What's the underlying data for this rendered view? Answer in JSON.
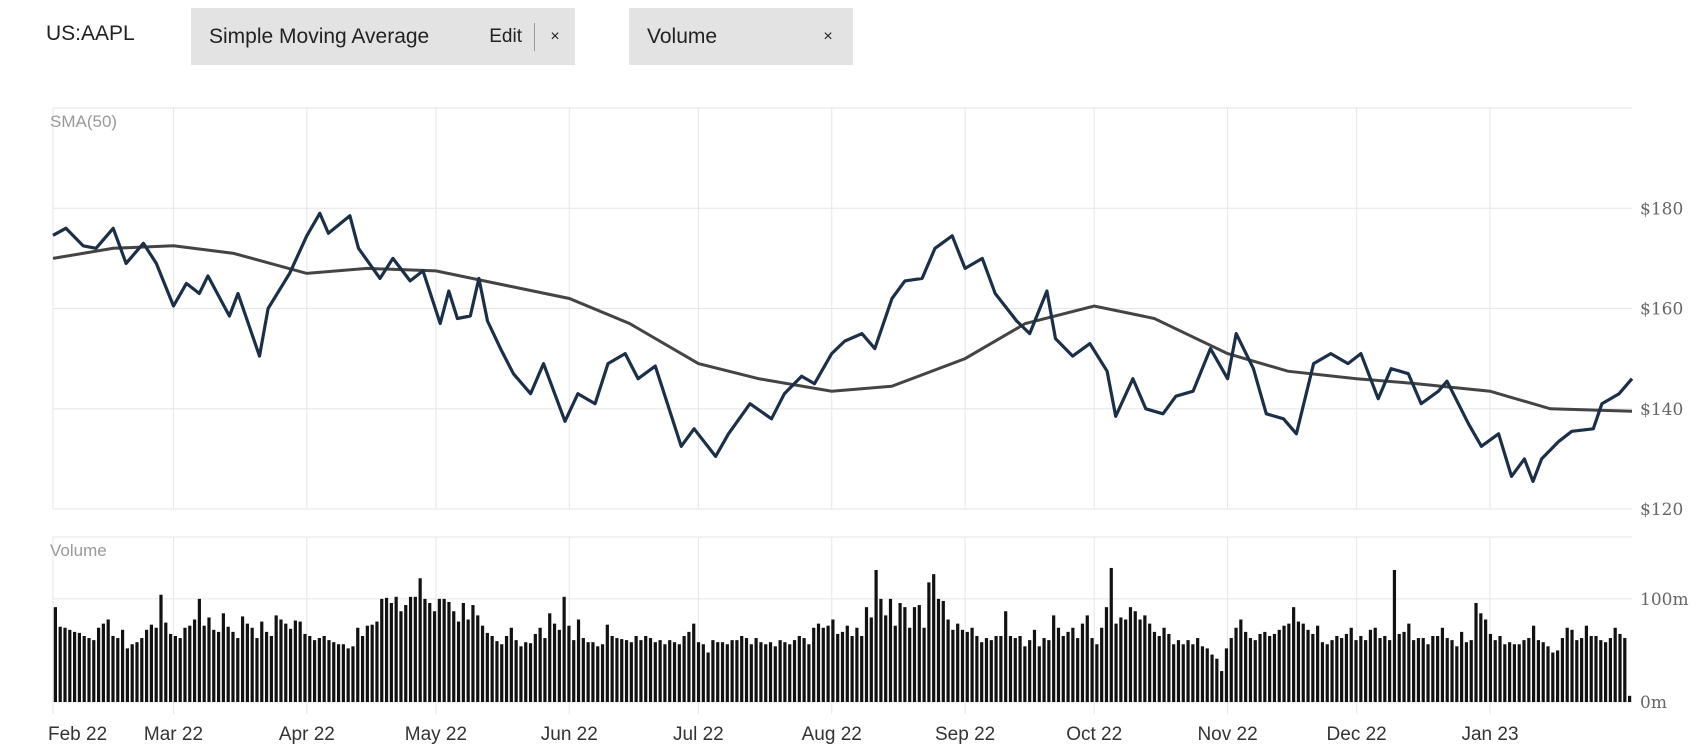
{
  "toolbar": {
    "ticker": "US:AAPL",
    "indicator_chip": {
      "label": "Simple Moving Average",
      "edit_label": "Edit",
      "close_label": "×"
    },
    "volume_chip": {
      "label": "Volume",
      "close_label": "×"
    }
  },
  "colors": {
    "price": "#1b3048",
    "sma": "#444444",
    "volume": "#111111",
    "grid": "#e6e6e6",
    "chip_bg": "#e3e3e3"
  },
  "chart_data": [
    {
      "type": "line",
      "label": "SMA(50)",
      "x_ticks": [
        "Feb 22",
        "Mar 22",
        "Apr 22",
        "May 22",
        "Jun 22",
        "Jul 22",
        "Aug 22",
        "Sep 22",
        "Oct 22",
        "Nov 22",
        "Dec 22",
        "Jan 23"
      ],
      "y_ticks": [
        "$120",
        "$140",
        "$160",
        "$180"
      ],
      "ylim": [
        120,
        200
      ],
      "xlim": [
        "2022-02-01",
        "2023-02-03"
      ],
      "series": [
        {
          "key": "price",
          "points": [
            [
              "2022-02-01",
              174.6
            ],
            [
              "2022-02-04",
              176
            ],
            [
              "2022-02-08",
              172.5
            ],
            [
              "2022-02-11",
              172
            ],
            [
              "2022-02-15",
              176
            ],
            [
              "2022-02-18",
              169
            ],
            [
              "2022-02-22",
              173
            ],
            [
              "2022-02-25",
              169
            ],
            [
              "2022-03-01",
              160.5
            ],
            [
              "2022-03-04",
              165
            ],
            [
              "2022-03-07",
              163
            ],
            [
              "2022-03-09",
              166.5
            ],
            [
              "2022-03-14",
              158.5
            ],
            [
              "2022-03-16",
              163
            ],
            [
              "2022-03-21",
              150.5
            ],
            [
              "2022-03-23",
              160
            ],
            [
              "2022-03-28",
              167
            ],
            [
              "2022-04-01",
              174.5
            ],
            [
              "2022-04-04",
              179
            ],
            [
              "2022-04-06",
              175
            ],
            [
              "2022-04-11",
              178.5
            ],
            [
              "2022-04-13",
              172
            ],
            [
              "2022-04-18",
              166
            ],
            [
              "2022-04-21",
              170
            ],
            [
              "2022-04-25",
              165.5
            ],
            [
              "2022-04-28",
              167.5
            ],
            [
              "2022-05-02",
              157
            ],
            [
              "2022-05-04",
              163.5
            ],
            [
              "2022-05-06",
              158
            ],
            [
              "2022-05-09",
              158.5
            ],
            [
              "2022-05-11",
              166
            ],
            [
              "2022-05-13",
              157.5
            ],
            [
              "2022-05-16",
              152
            ],
            [
              "2022-05-19",
              147
            ],
            [
              "2022-05-23",
              143
            ],
            [
              "2022-05-26",
              149
            ],
            [
              "2022-05-31",
              137.5
            ],
            [
              "2022-06-03",
              143
            ],
            [
              "2022-06-07",
              141
            ],
            [
              "2022-06-10",
              149
            ],
            [
              "2022-06-14",
              151
            ],
            [
              "2022-06-17",
              146
            ],
            [
              "2022-06-21",
              148.5
            ],
            [
              "2022-06-27",
              132.5
            ],
            [
              "2022-06-30",
              136
            ],
            [
              "2022-07-05",
              130.5
            ],
            [
              "2022-07-08",
              135
            ],
            [
              "2022-07-13",
              141
            ],
            [
              "2022-07-18",
              138
            ],
            [
              "2022-07-21",
              143
            ],
            [
              "2022-07-25",
              146.5
            ],
            [
              "2022-07-28",
              145
            ],
            [
              "2022-08-01",
              151
            ],
            [
              "2022-08-04",
              153.5
            ],
            [
              "2022-08-08",
              155
            ],
            [
              "2022-08-11",
              152
            ],
            [
              "2022-08-15",
              162
            ],
            [
              "2022-08-18",
              165.5
            ],
            [
              "2022-08-22",
              166
            ],
            [
              "2022-08-25",
              172
            ],
            [
              "2022-08-29",
              174.5
            ],
            [
              "2022-09-01",
              168
            ],
            [
              "2022-09-05",
              170
            ],
            [
              "2022-09-08",
              163
            ],
            [
              "2022-09-13",
              157.5
            ],
            [
              "2022-09-16",
              155
            ],
            [
              "2022-09-20",
              163.5
            ],
            [
              "2022-09-22",
              154
            ],
            [
              "2022-09-26",
              150.5
            ],
            [
              "2022-09-30",
              153
            ],
            [
              "2022-10-04",
              147.5
            ],
            [
              "2022-10-06",
              138.5
            ],
            [
              "2022-10-10",
              146
            ],
            [
              "2022-10-13",
              140
            ],
            [
              "2022-10-17",
              139
            ],
            [
              "2022-10-20",
              142.5
            ],
            [
              "2022-10-24",
              143.5
            ],
            [
              "2022-10-28",
              152
            ],
            [
              "2022-11-01",
              146
            ],
            [
              "2022-11-03",
              155
            ],
            [
              "2022-11-07",
              148
            ],
            [
              "2022-11-10",
              139
            ],
            [
              "2022-11-14",
              138
            ],
            [
              "2022-11-17",
              135
            ],
            [
              "2022-11-21",
              149
            ],
            [
              "2022-11-25",
              151
            ],
            [
              "2022-11-29",
              149
            ],
            [
              "2022-12-02",
              151
            ],
            [
              "2022-12-06",
              142
            ],
            [
              "2022-12-09",
              148
            ],
            [
              "2022-12-13",
              147
            ],
            [
              "2022-12-16",
              141
            ],
            [
              "2022-12-20",
              143.5
            ],
            [
              "2022-12-22",
              145.5
            ],
            [
              "2022-12-27",
              137
            ],
            [
              "2022-12-30",
              132.5
            ],
            [
              "2023-01-03",
              135
            ],
            [
              "2023-01-06",
              126.5
            ],
            [
              "2023-01-09",
              130
            ],
            [
              "2023-01-11",
              125.5
            ],
            [
              "2023-01-13",
              130
            ],
            [
              "2023-01-17",
              133.5
            ],
            [
              "2023-01-20",
              135.5
            ],
            [
              "2023-01-25",
              136
            ],
            [
              "2023-01-27",
              141
            ],
            [
              "2023-01-31",
              143
            ],
            [
              "2023-02-03",
              146
            ]
          ]
        },
        {
          "key": "sma",
          "points": [
            [
              "2022-02-01",
              170
            ],
            [
              "2022-02-15",
              172
            ],
            [
              "2022-03-01",
              172.5
            ],
            [
              "2022-03-15",
              171
            ],
            [
              "2022-04-01",
              167
            ],
            [
              "2022-04-15",
              168
            ],
            [
              "2022-05-01",
              167.5
            ],
            [
              "2022-05-15",
              165
            ],
            [
              "2022-06-01",
              162
            ],
            [
              "2022-06-15",
              157
            ],
            [
              "2022-07-01",
              149
            ],
            [
              "2022-07-15",
              146
            ],
            [
              "2022-08-01",
              143.5
            ],
            [
              "2022-08-15",
              144.5
            ],
            [
              "2022-09-01",
              150
            ],
            [
              "2022-09-15",
              157
            ],
            [
              "2022-10-01",
              160.5
            ],
            [
              "2022-10-15",
              158
            ],
            [
              "2022-11-01",
              151
            ],
            [
              "2022-11-15",
              147.5
            ],
            [
              "2022-12-01",
              146
            ],
            [
              "2022-12-15",
              145
            ],
            [
              "2023-01-01",
              143.5
            ],
            [
              "2023-01-15",
              140
            ],
            [
              "2023-02-03",
              139.5
            ]
          ]
        }
      ]
    },
    {
      "type": "bar",
      "label": "Volume",
      "y_ticks": [
        "0m",
        "100m"
      ],
      "ylim": [
        0,
        160
      ],
      "values": [
        92,
        73,
        72,
        70,
        68,
        67,
        64,
        62,
        60,
        72,
        76,
        80,
        64,
        62,
        70,
        52,
        56,
        58,
        62,
        70,
        75,
        72,
        104,
        77,
        66,
        64,
        62,
        72,
        74,
        80,
        100,
        74,
        82,
        70,
        68,
        86,
        73,
        68,
        62,
        83,
        76,
        72,
        62,
        78,
        68,
        64,
        84,
        80,
        76,
        71,
        79,
        78,
        66,
        64,
        60,
        62,
        64,
        60,
        58,
        56,
        56,
        52,
        54,
        72,
        64,
        74,
        75,
        78,
        100,
        101,
        96,
        102,
        88,
        94,
        102,
        102,
        120,
        100,
        96,
        88,
        100,
        100,
        97,
        88,
        78,
        96,
        80,
        94,
        84,
        74,
        67,
        64,
        59,
        56,
        64,
        72,
        60,
        54,
        58,
        57,
        66,
        72,
        62,
        86,
        76,
        70,
        102,
        74,
        60,
        80,
        62,
        58,
        58,
        54,
        56,
        75,
        64,
        62,
        61,
        60,
        58,
        64,
        60,
        64,
        62,
        58,
        60,
        56,
        60,
        58,
        56,
        64,
        68,
        76,
        58,
        56,
        48,
        60,
        58,
        58,
        56,
        60,
        60,
        64,
        62,
        56,
        62,
        58,
        56,
        58,
        54,
        60,
        58,
        56,
        60,
        64,
        62,
        56,
        72,
        76,
        72,
        74,
        80,
        66,
        68,
        74,
        64,
        72,
        64,
        92,
        82,
        128,
        100,
        84,
        100,
        74,
        96,
        92,
        72,
        92,
        94,
        72,
        116,
        124,
        100,
        98,
        80,
        70,
        76,
        70,
        68,
        72,
        64,
        58,
        62,
        60,
        64,
        64,
        88,
        64,
        62,
        64,
        54,
        60,
        70,
        54,
        62,
        60,
        84,
        72,
        64,
        68,
        72,
        62,
        76,
        84,
        62,
        56,
        72,
        92,
        130,
        76,
        82,
        80,
        92,
        88,
        80,
        84,
        76,
        68,
        64,
        72,
        66,
        56,
        60,
        56,
        60,
        56,
        62,
        54,
        52,
        46,
        42,
        30,
        52,
        62,
        72,
        80,
        68,
        62,
        60,
        66,
        68,
        64,
        66,
        70,
        74,
        76,
        92,
        78,
        76,
        70,
        66,
        74,
        58,
        56,
        60,
        64,
        62,
        66,
        72,
        60,
        64,
        60,
        70,
        72,
        62,
        64,
        60,
        128,
        66,
        68,
        76,
        60,
        62,
        62,
        56,
        64,
        64,
        72,
        62,
        60,
        54,
        68,
        58,
        60,
        96,
        86,
        80,
        66,
        60,
        64,
        56,
        58,
        56,
        56,
        60,
        62,
        74,
        60,
        58,
        54,
        48,
        50,
        62,
        72,
        70,
        60,
        62,
        74,
        64,
        64,
        60,
        58,
        62,
        72,
        66,
        62,
        6
      ]
    }
  ]
}
